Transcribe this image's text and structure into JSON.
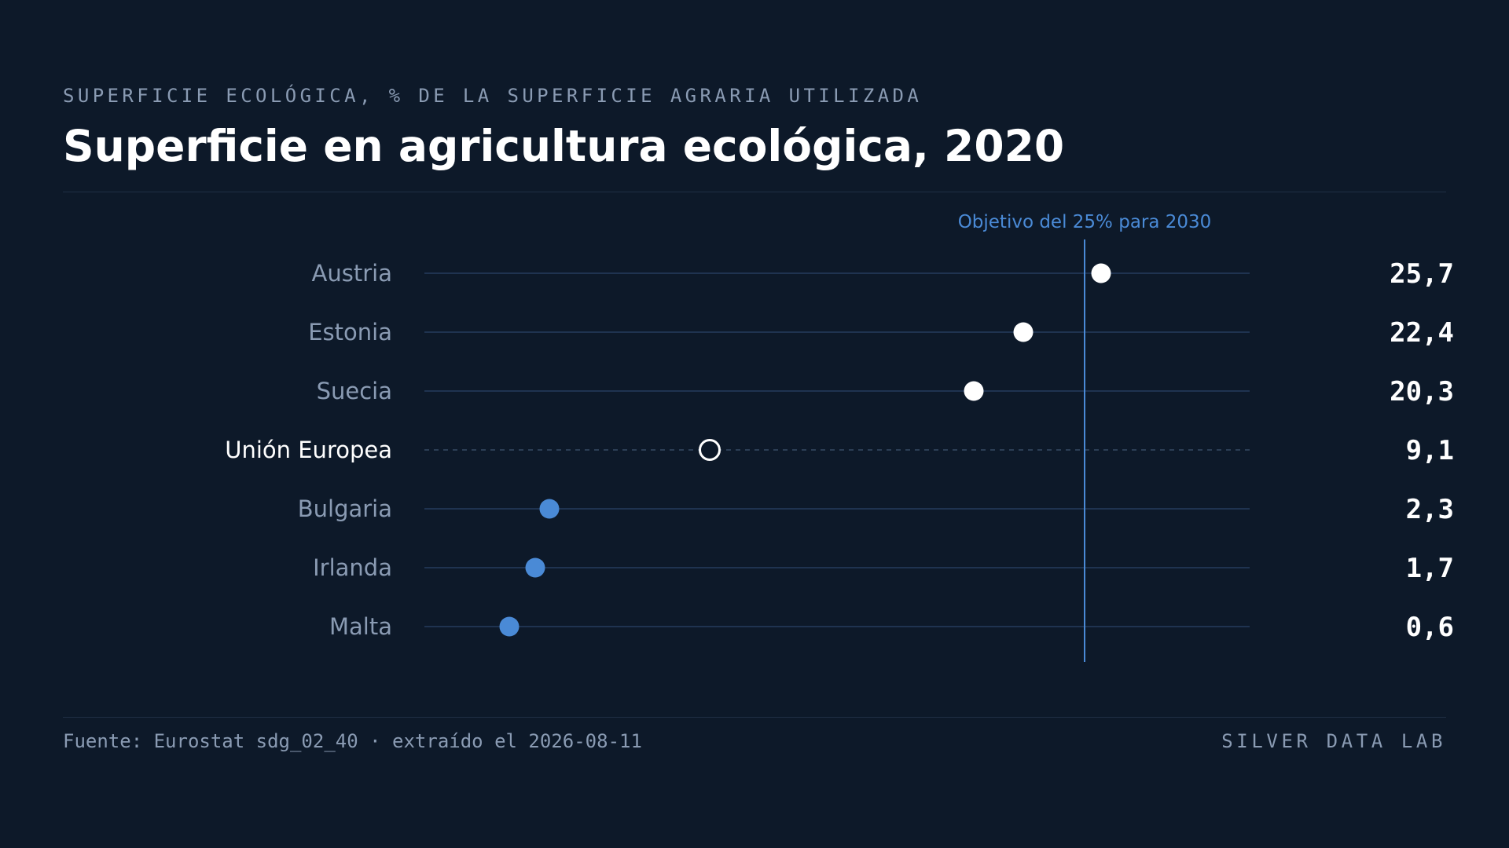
{
  "header": {
    "eyebrow": "SUPERFICIE ECOLÓGICA, % DE LA SUPERFICIE AGRARIA UTILIZADA",
    "title": "Superficie en agricultura ecológica, 2020"
  },
  "footer": {
    "source": "Fuente: Eurostat sdg_02_40 · extraído el 2026-08-11",
    "brand": "SILVER DATA LAB"
  },
  "colors": {
    "background": "#0d1929",
    "above_average": "#ffffff",
    "below_average": "#4a8ad6",
    "target_line": "#4a8ad6",
    "track": "#1f3350",
    "muted_text": "#8a9bb3"
  },
  "chart_data": {
    "type": "dot",
    "title": "Superficie en agricultura ecológica, 2020",
    "xlim": [
      -3,
      32
    ],
    "grid": false,
    "categories": [
      "Austria",
      "Estonia",
      "Suecia",
      "Unión Europea",
      "Bulgaria",
      "Irlanda",
      "Malta"
    ],
    "values": [
      25.7,
      22.4,
      20.3,
      9.1,
      2.3,
      1.7,
      0.6
    ],
    "value_labels": [
      "25,7",
      "22,4",
      "20,3",
      "9,1",
      "2,3",
      "1,7",
      "0,6"
    ],
    "reference_row": "Unión Europea",
    "target": {
      "value": 25,
      "label": "Objetivo del 25% para 2030"
    }
  }
}
